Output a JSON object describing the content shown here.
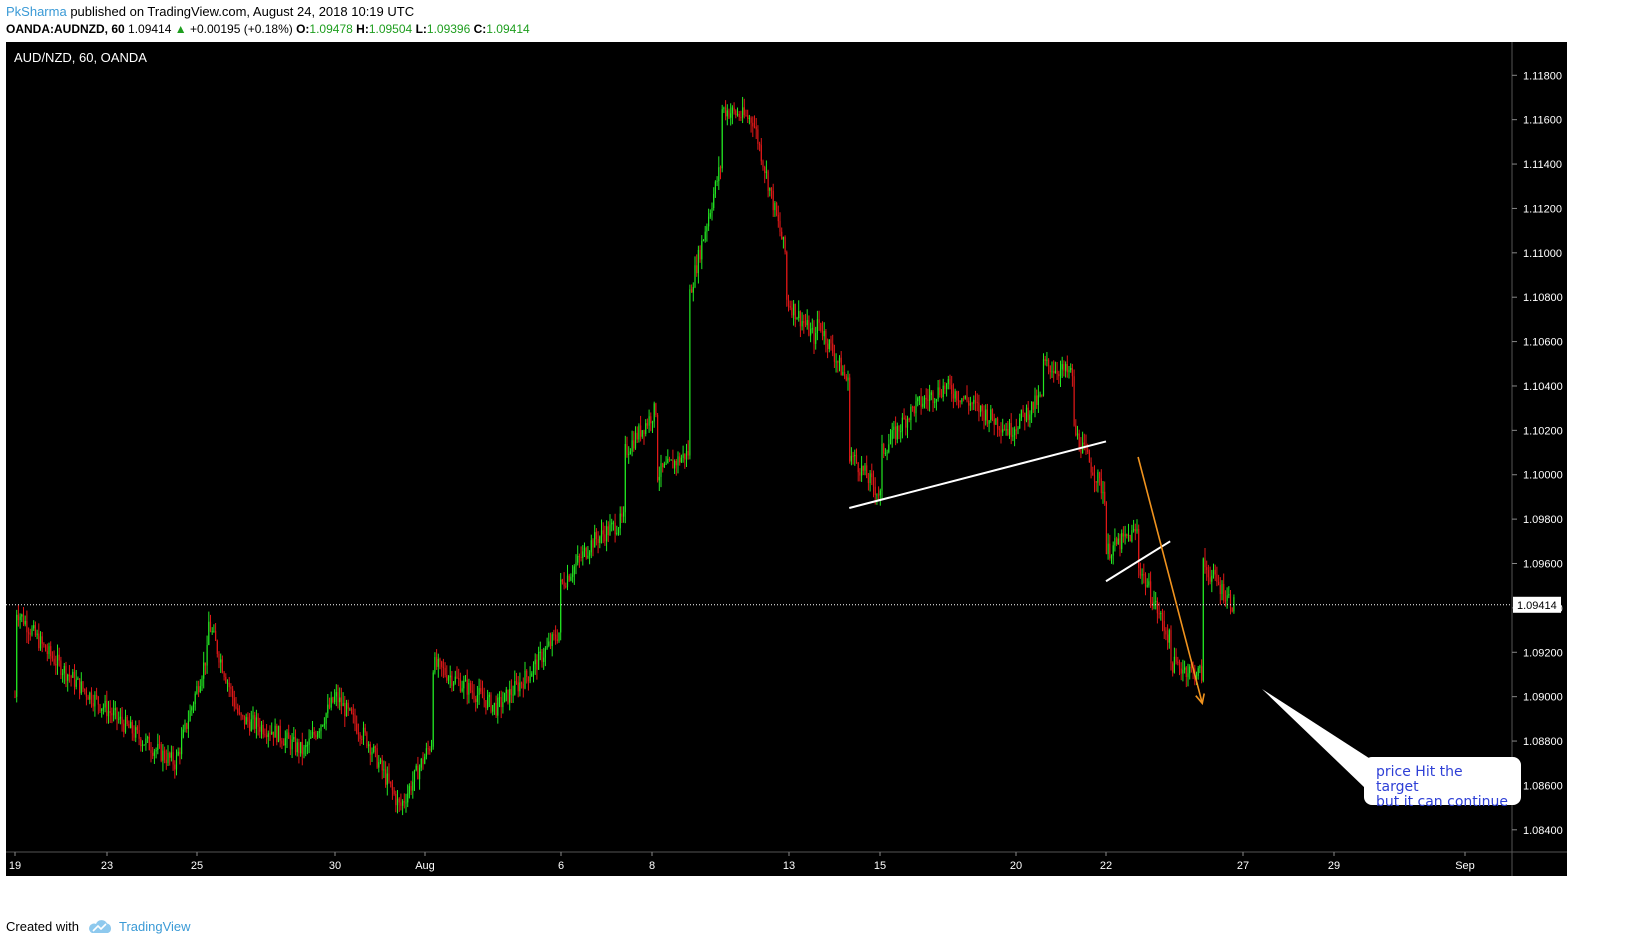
{
  "header": {
    "author": "PkSharma",
    "published_text": "published on TradingView.com, August 24, 2018 10:19 UTC"
  },
  "legend": {
    "symbol": "OANDA:AUDNZD, 60",
    "last": "1.09414",
    "change": "+0.00195 (+0.18%)",
    "o_label": "O:",
    "o_value": "1.09478",
    "h_label": "H:",
    "h_value": "1.09504",
    "l_label": "L:",
    "l_value": "1.09396",
    "c_label": "C:",
    "c_value": "1.09414"
  },
  "colors": {
    "background": "#000000",
    "up": "#22e622",
    "down": "#e01818",
    "trendline": "#ffffff",
    "arrow": "#f0931e",
    "callout_text": "#2e3fd6",
    "brand": "#3a9ad6"
  },
  "footer": {
    "created_with": "Created with",
    "brand": "TradingView"
  },
  "annotation": {
    "text_line1": "price Hit the target",
    "text_line2": "but it can continue"
  },
  "chart_data": {
    "type": "candlestick",
    "title": "AUD/NZD, 60, OANDA",
    "ylim": [
      1.083,
      1.1195
    ],
    "y_ticks": [
      "1.11800",
      "1.11600",
      "1.11400",
      "1.11200",
      "1.11000",
      "1.10800",
      "1.10600",
      "1.10400",
      "1.10200",
      "1.10000",
      "1.09800",
      "1.09600",
      "1.09400",
      "1.09200",
      "1.09000",
      "1.08800",
      "1.08600",
      "1.08400"
    ],
    "x_ticks": [
      "19",
      "23",
      "25",
      "30",
      "Aug",
      "6",
      "8",
      "13",
      "15",
      "20",
      "22",
      "27",
      "29",
      "Sep"
    ],
    "current_price": "1.09414",
    "price_path": [
      {
        "x": "Jul 19",
        "y": 1.09
      },
      {
        "x": "Jul 19",
        "y": 1.094
      },
      {
        "x": "Jul 20",
        "y": 1.092
      },
      {
        "x": "Jul 21",
        "y": 1.0905
      },
      {
        "x": "Jul 23",
        "y": 1.088
      },
      {
        "x": "Jul 24",
        "y": 1.087
      },
      {
        "x": "Jul 25",
        "y": 1.092
      },
      {
        "x": "Jul 25",
        "y": 1.0935
      },
      {
        "x": "Jul 26",
        "y": 1.089
      },
      {
        "x": "Jul 27",
        "y": 1.0885
      },
      {
        "x": "Jul 28",
        "y": 1.0875
      },
      {
        "x": "Jul 29",
        "y": 1.09
      },
      {
        "x": "Jul 30",
        "y": 1.088
      },
      {
        "x": "Jul 31",
        "y": 1.085
      },
      {
        "x": "Aug 1",
        "y": 1.088
      },
      {
        "x": "Aug 1",
        "y": 1.0915
      },
      {
        "x": "Aug 2",
        "y": 1.0905
      },
      {
        "x": "Aug 3",
        "y": 1.0895
      },
      {
        "x": "Aug 4",
        "y": 1.091
      },
      {
        "x": "Aug 5",
        "y": 1.093
      },
      {
        "x": "Aug 5",
        "y": 1.095
      },
      {
        "x": "Aug 6",
        "y": 1.097
      },
      {
        "x": "Aug 7",
        "y": 1.098
      },
      {
        "x": "Aug 7",
        "y": 1.101
      },
      {
        "x": "Aug 8",
        "y": 1.103
      },
      {
        "x": "Aug 8",
        "y": 1.1
      },
      {
        "x": "Aug 9",
        "y": 1.101
      },
      {
        "x": "Aug 9",
        "y": 1.108
      },
      {
        "x": "Aug 10",
        "y": 1.114
      },
      {
        "x": "Aug 10",
        "y": 1.1165
      },
      {
        "x": "Aug 11",
        "y": 1.116
      },
      {
        "x": "Aug 12",
        "y": 1.11
      },
      {
        "x": "Aug 12",
        "y": 1.108
      },
      {
        "x": "Aug 13",
        "y": 1.106
      },
      {
        "x": "Aug 13",
        "y": 1.107
      },
      {
        "x": "Aug 14",
        "y": 1.104
      },
      {
        "x": "Aug 14",
        "y": 1.101
      },
      {
        "x": "Aug 15",
        "y": 1.099
      },
      {
        "x": "Aug 15",
        "y": 1.101
      },
      {
        "x": "Aug 16",
        "y": 1.103
      },
      {
        "x": "Aug 17",
        "y": 1.104
      },
      {
        "x": "Aug 18",
        "y": 1.103
      },
      {
        "x": "Aug 19",
        "y": 1.102
      },
      {
        "x": "Aug 20",
        "y": 1.1035
      },
      {
        "x": "Aug 20",
        "y": 1.105
      },
      {
        "x": "Aug 21",
        "y": 1.1045
      },
      {
        "x": "Aug 21",
        "y": 1.102
      },
      {
        "x": "Aug 22",
        "y": 1.099
      },
      {
        "x": "Aug 22",
        "y": 1.0965
      },
      {
        "x": "Aug 23",
        "y": 1.0975
      },
      {
        "x": "Aug 23",
        "y": 1.096
      },
      {
        "x": "Aug 24",
        "y": 1.0925
      },
      {
        "x": "Aug 24",
        "y": 1.0915
      },
      {
        "x": "Aug 25",
        "y": 1.091
      },
      {
        "x": "Aug 25",
        "y": 1.096
      },
      {
        "x": "Aug 26",
        "y": 1.0941
      }
    ],
    "annotations": [
      {
        "type": "trendline",
        "from": {
          "x": "Aug 14",
          "y": 1.0985
        },
        "to": {
          "x": "Aug 22",
          "y": 1.1015
        }
      },
      {
        "type": "trendline",
        "from": {
          "x": "Aug 22",
          "y": 1.0952
        },
        "to": {
          "x": "Aug 24",
          "y": 1.097
        }
      },
      {
        "type": "arrow",
        "from": {
          "x": "Aug 23",
          "y": 1.1008
        },
        "to": {
          "x": "Aug 25",
          "y": 1.0897
        }
      },
      {
        "type": "callout",
        "text": "price Hit the target but it can continue"
      }
    ]
  }
}
